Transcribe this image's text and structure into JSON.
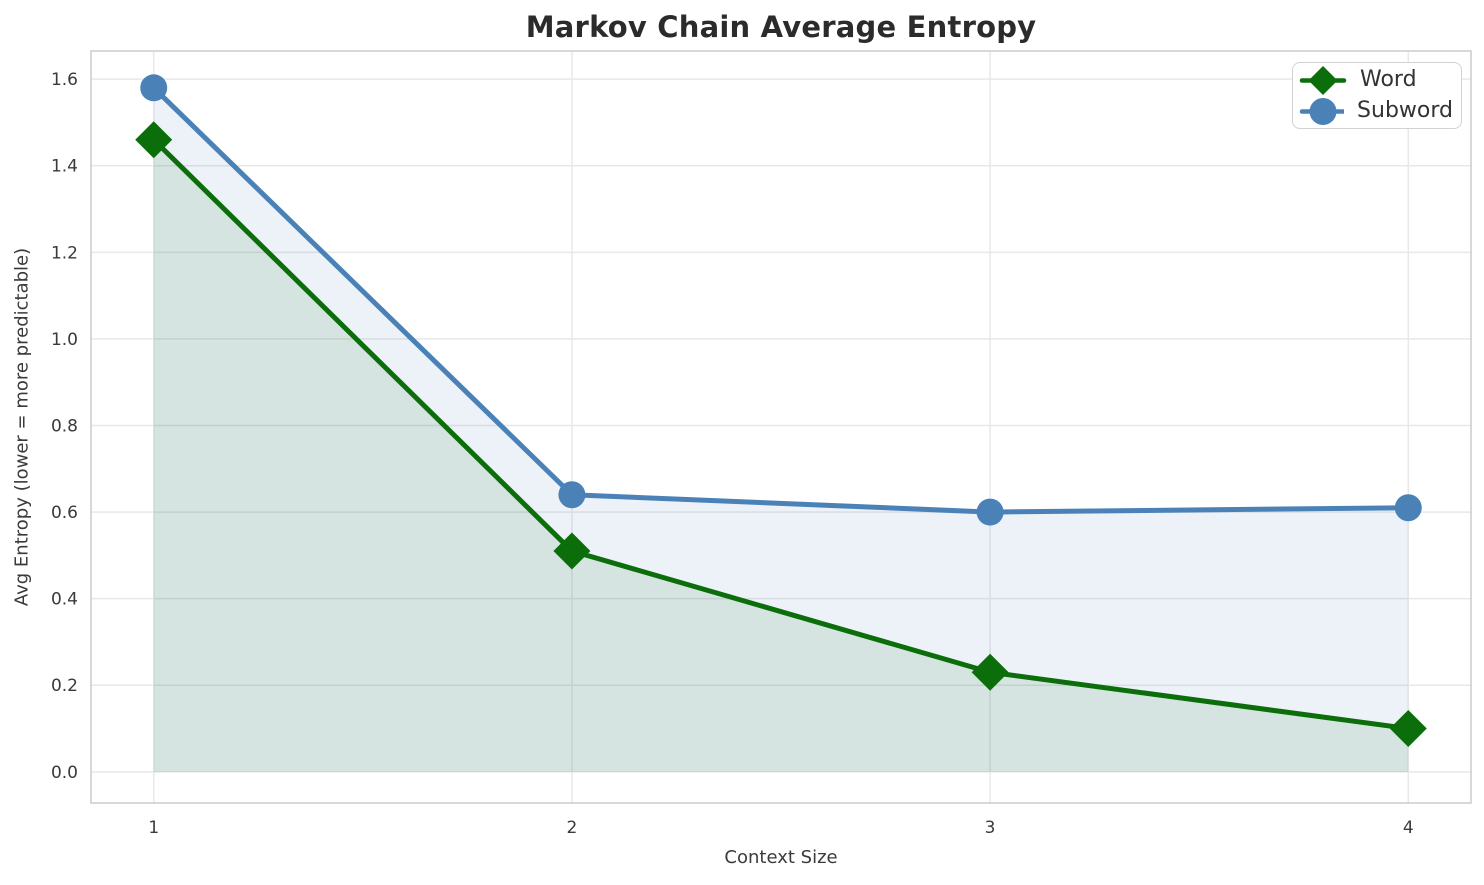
{
  "chart_data": {
    "type": "line",
    "title": "Markov Chain Average Entropy",
    "xlabel": "Context Size",
    "ylabel": "Avg Entropy (lower = more predictable)",
    "x": [
      1,
      2,
      3,
      4
    ],
    "series": [
      {
        "name": "Word",
        "values": [
          1.46,
          0.51,
          0.23,
          0.1
        ],
        "color": "#0b6e0b",
        "marker": "diamond",
        "fill_to_zero": true
      },
      {
        "name": "Subword",
        "values": [
          1.58,
          0.64,
          0.6,
          0.61
        ],
        "color": "#4a82b8",
        "marker": "circle",
        "fill_to_zero": true
      }
    ],
    "fill_alpha": 0.1,
    "line_width": 5,
    "xlim": [
      0.85,
      4.15
    ],
    "ylim": [
      -0.072,
      1.665
    ],
    "xticks": [
      "1",
      "2",
      "3",
      "4"
    ],
    "yticks": [
      "0.0",
      "0.2",
      "0.4",
      "0.6",
      "0.8",
      "1.0",
      "1.2",
      "1.4",
      "1.6"
    ],
    "grid": true,
    "legend_position": "upper-right"
  },
  "colors": {
    "grid": "#e8e8e8",
    "spine": "#cccccc",
    "title": "#2b2b2b",
    "text": "#3a3a3a",
    "legend_border": "#d2d2d2",
    "legend_text": "#333333"
  }
}
